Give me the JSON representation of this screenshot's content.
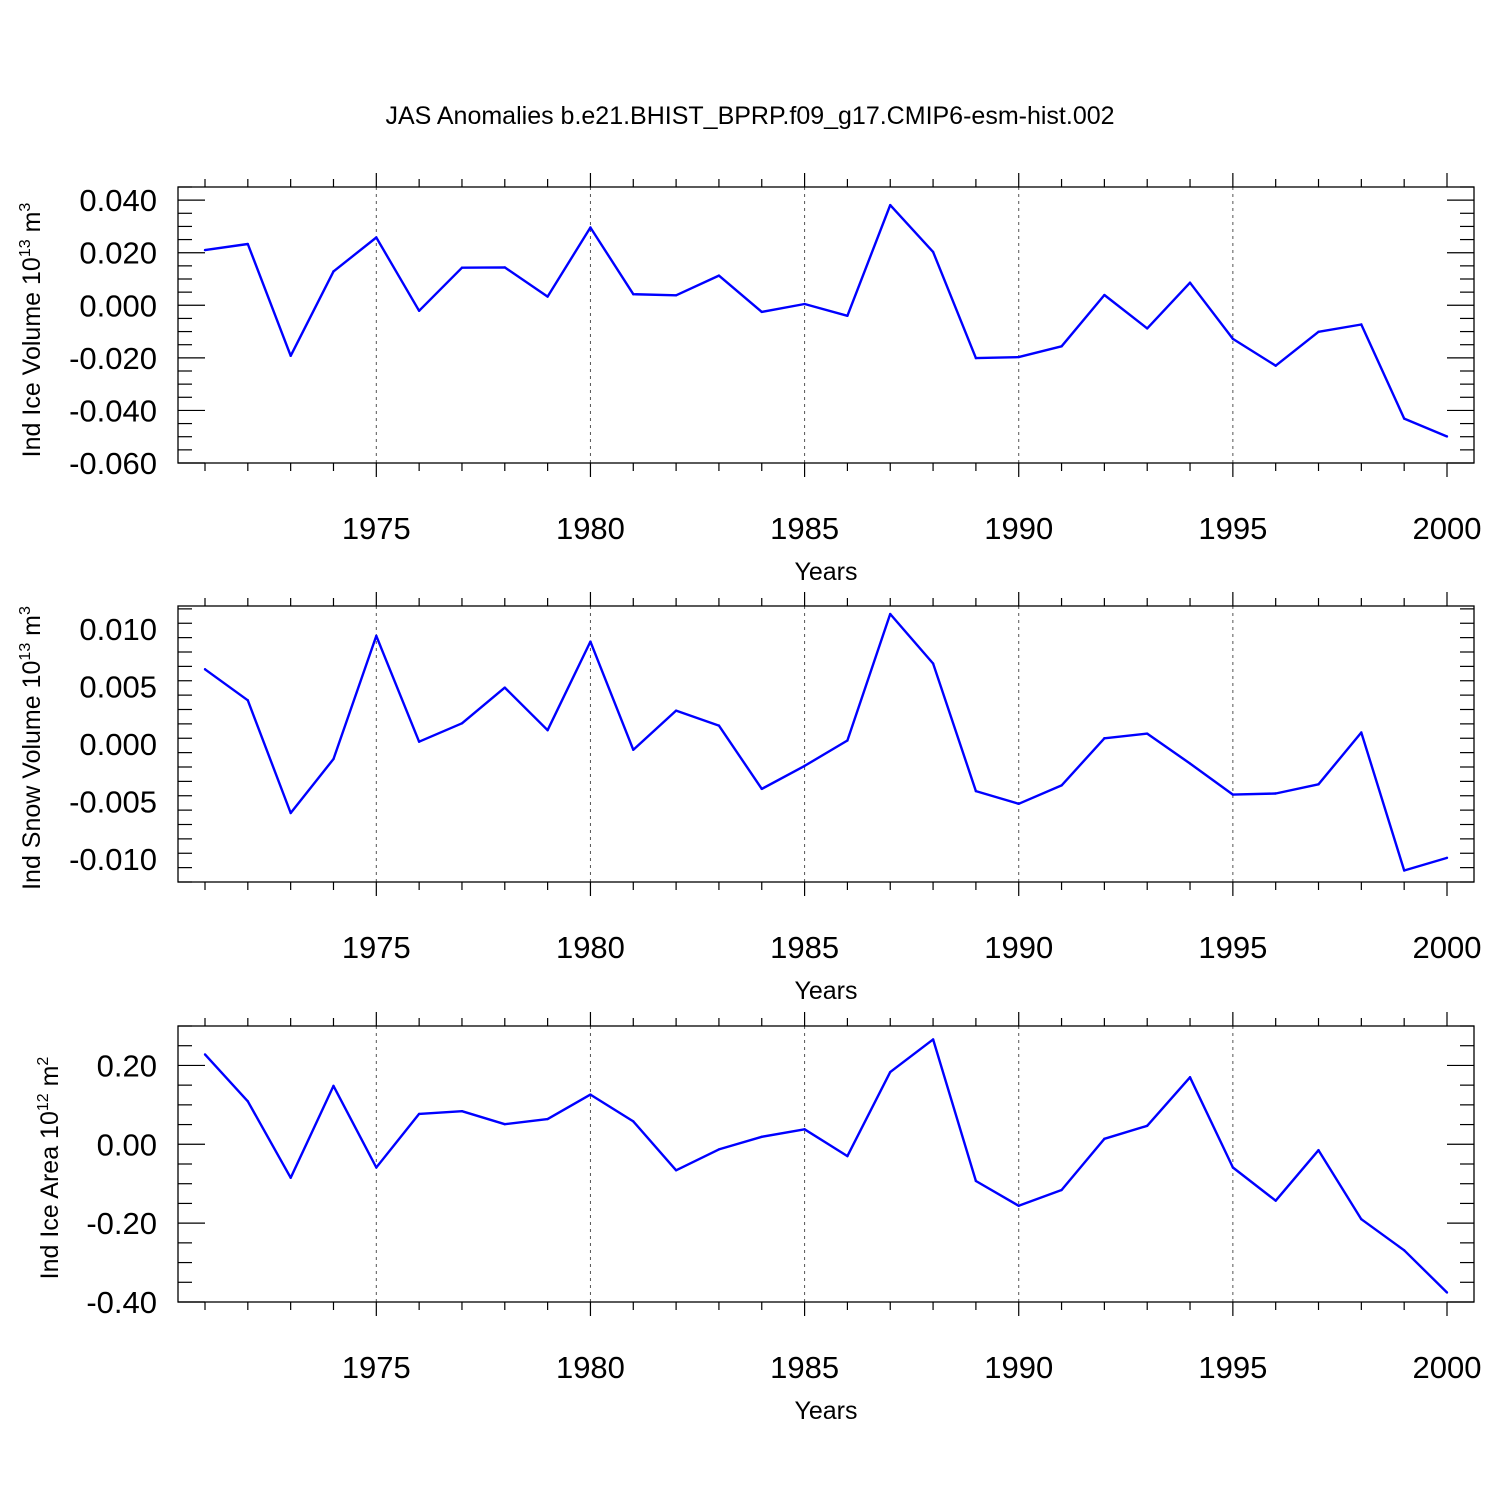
{
  "title": "JAS Anomalies b.e21.BHIST_BPRP.f09_g17.CMIP6-esm-hist.002",
  "colors": {
    "line": "#0000ff",
    "axis": "#000000",
    "grid": "#555555"
  },
  "chart_data": [
    {
      "type": "line",
      "ylabel": {
        "main": "Ind Ice Volume 10",
        "exp": "13",
        "unit": " m",
        "unit_exp": "3"
      },
      "xlabel": "Years",
      "xlim": [
        1971,
        2000
      ],
      "ylim": [
        -0.06,
        0.045
      ],
      "xticks": [
        "1975",
        "1980",
        "1985",
        "1990",
        "1995",
        "2000"
      ],
      "yticks": [
        "0.040",
        "0.020",
        "0.000",
        "-0.020",
        "-0.040",
        "-0.060"
      ],
      "x": [
        1971,
        1972,
        1973,
        1974,
        1975,
        1976,
        1977,
        1978,
        1979,
        1980,
        1981,
        1982,
        1983,
        1984,
        1985,
        1986,
        1987,
        1988,
        1989,
        1990,
        1991,
        1992,
        1993,
        1994,
        1995,
        1996,
        1997,
        1998,
        1999,
        2000
      ],
      "values": [
        0.021,
        0.0233,
        -0.0192,
        0.0129,
        0.0258,
        -0.0021,
        0.0143,
        0.0144,
        0.0033,
        0.0296,
        0.0042,
        0.0038,
        0.0113,
        -0.0025,
        0.0005,
        -0.004,
        0.0381,
        0.0203,
        -0.0201,
        -0.0197,
        -0.0156,
        0.0039,
        -0.0088,
        0.0086,
        -0.0128,
        -0.023,
        -0.0101,
        -0.0073,
        -0.0431,
        -0.0499
      ]
    },
    {
      "type": "line",
      "ylabel": {
        "main": "Ind Snow Volume 10",
        "exp": "13",
        "unit": " m",
        "unit_exp": "3"
      },
      "xlabel": "Years",
      "xlim": [
        1971,
        2000
      ],
      "ylim": [
        -0.012,
        0.012
      ],
      "xticks": [
        "1975",
        "1980",
        "1985",
        "1990",
        "1995",
        "2000"
      ],
      "yticks": [
        "0.010",
        "0.005",
        "0.000",
        "-0.005",
        "-0.010"
      ],
      "x": [
        1971,
        1972,
        1973,
        1974,
        1975,
        1976,
        1977,
        1978,
        1979,
        1980,
        1981,
        1982,
        1983,
        1984,
        1985,
        1986,
        1987,
        1988,
        1989,
        1990,
        1991,
        1992,
        1993,
        1994,
        1995,
        1996,
        1997,
        1998,
        1999,
        2000
      ],
      "values": [
        0.0065,
        0.0038,
        -0.006,
        -0.0013,
        0.0094,
        0.0002,
        0.0018,
        0.0049,
        0.0012,
        0.0089,
        -0.0005,
        0.0029,
        0.0016,
        -0.0039,
        -0.0019,
        0.0003,
        0.0113,
        0.007,
        -0.0041,
        -0.0052,
        -0.0036,
        0.0005,
        0.0009,
        -0.0017,
        -0.0044,
        -0.0043,
        -0.0035,
        0.001,
        -0.011,
        -0.0099
      ]
    },
    {
      "type": "line",
      "ylabel": {
        "main": "Ind Ice Area 10",
        "exp": "12",
        "unit": " m",
        "unit_exp": "2"
      },
      "xlabel": "Years",
      "xlim": [
        1971,
        2000
      ],
      "ylim": [
        -0.4,
        0.3
      ],
      "xticks": [
        "1975",
        "1980",
        "1985",
        "1990",
        "1995",
        "2000"
      ],
      "yticks": [
        "0.20",
        "0.00",
        "-0.20",
        "-0.40"
      ],
      "x": [
        1971,
        1972,
        1973,
        1974,
        1975,
        1976,
        1977,
        1978,
        1979,
        1980,
        1981,
        1982,
        1983,
        1984,
        1985,
        1986,
        1987,
        1988,
        1989,
        1990,
        1991,
        1992,
        1993,
        1994,
        1995,
        1996,
        1997,
        1998,
        1999,
        2000
      ],
      "values": [
        0.228,
        0.109,
        -0.085,
        0.148,
        -0.059,
        0.077,
        0.084,
        0.051,
        0.064,
        0.126,
        0.058,
        -0.066,
        -0.013,
        0.019,
        0.038,
        -0.03,
        0.183,
        0.266,
        -0.093,
        -0.156,
        -0.116,
        0.014,
        0.047,
        0.17,
        -0.059,
        -0.143,
        -0.015,
        -0.19,
        -0.269,
        -0.376
      ]
    }
  ]
}
